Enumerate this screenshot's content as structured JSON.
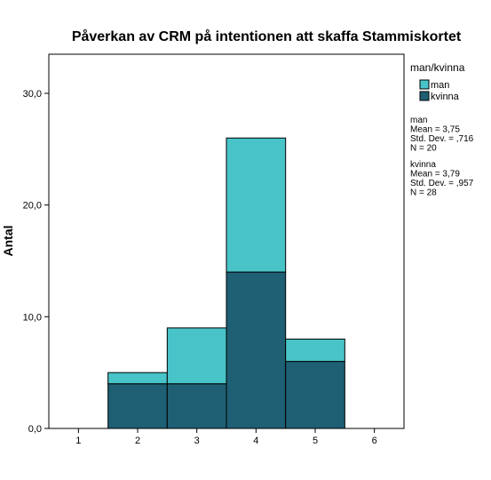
{
  "chart_data": {
    "type": "bar",
    "title": "Påverkan av CRM på intentionen att skaffa Stammiskortet",
    "xlabel": "",
    "ylabel": "Antal",
    "categories": [
      "2",
      "3",
      "4",
      "5"
    ],
    "x_values": [
      2,
      3,
      4,
      5
    ],
    "stacked": true,
    "series": [
      {
        "name": "kvinna",
        "values": [
          4,
          4,
          14,
          6
        ],
        "color": "#1e5f74"
      },
      {
        "name": "man",
        "values": [
          1,
          5,
          12,
          2
        ],
        "color": "#48c4c8"
      }
    ],
    "xlim": [
      0.5,
      6.5
    ],
    "ylim": [
      0,
      33.5
    ],
    "x_ticks": [
      1,
      2,
      3,
      4,
      5,
      6
    ],
    "x_tick_labels": [
      "1",
      "2",
      "3",
      "4",
      "5",
      "6"
    ],
    "y_ticks": [
      0,
      10,
      20,
      30
    ],
    "y_tick_labels": [
      "0,0",
      "10,0",
      "20,0",
      "30,0"
    ],
    "grid": false,
    "legend": {
      "title": "man/kvinna",
      "placement": "right",
      "entries": [
        {
          "label": "man",
          "color": "#48c4c8"
        },
        {
          "label": "kvinna",
          "color": "#1e5f74"
        }
      ]
    },
    "stats": [
      {
        "group": "man",
        "lines": [
          "man",
          "Mean = 3,75",
          "Std. Dev. = ,716",
          "N = 20"
        ]
      },
      {
        "group": "kvinna",
        "lines": [
          "kvinna",
          "Mean = 3,79",
          "Std. Dev. = ,957",
          "N = 28"
        ]
      }
    ]
  }
}
